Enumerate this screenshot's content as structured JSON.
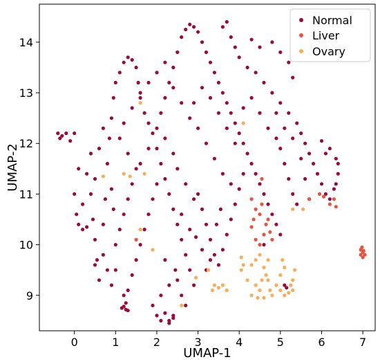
{
  "chart_data": {
    "type": "scatter",
    "xlabel": "UMAP-1",
    "ylabel": "UMAP-2",
    "xlim": [
      -0.85,
      7.3
    ],
    "ylim": [
      8.3,
      14.75
    ],
    "xticks": [
      "0",
      "1",
      "2",
      "3",
      "4",
      "5",
      "6",
      "7"
    ],
    "xtick_values": [
      0,
      1,
      2,
      3,
      4,
      5,
      6,
      7
    ],
    "yticks": [
      "9",
      "10",
      "11",
      "12",
      "13",
      "14"
    ],
    "ytick_values": [
      9,
      10,
      11,
      12,
      13,
      14
    ],
    "grid": false,
    "legend_position": "top-right",
    "series": [
      {
        "name": "Normal",
        "color": "#9b0a3f",
        "points": [
          [
            -0.4,
            12.2
          ],
          [
            -0.35,
            12.1
          ],
          [
            -0.3,
            12.15
          ],
          [
            -0.2,
            12.2
          ],
          [
            -0.1,
            12.05
          ],
          [
            0.0,
            12.2
          ],
          [
            0.1,
            11.5
          ],
          [
            0.0,
            11.0
          ],
          [
            0.05,
            10.6
          ],
          [
            0.1,
            10.4
          ],
          [
            0.2,
            10.3
          ],
          [
            0.3,
            10.35
          ],
          [
            0.2,
            10.8
          ],
          [
            0.3,
            11.4
          ],
          [
            0.4,
            11.0
          ],
          [
            0.45,
            10.5
          ],
          [
            0.5,
            10.1
          ],
          [
            0.55,
            9.7
          ],
          [
            0.6,
            9.3
          ],
          [
            0.5,
            9.6
          ],
          [
            0.7,
            10.4
          ],
          [
            0.75,
            10.9
          ],
          [
            0.8,
            11.6
          ],
          [
            0.85,
            12.1
          ],
          [
            0.9,
            12.5
          ],
          [
            0.95,
            12.9
          ],
          [
            1.0,
            13.2
          ],
          [
            1.1,
            13.4
          ],
          [
            1.2,
            13.6
          ],
          [
            1.3,
            13.7
          ],
          [
            1.4,
            13.65
          ],
          [
            1.5,
            13.5
          ],
          [
            1.55,
            13.2
          ],
          [
            1.6,
            12.9
          ],
          [
            1.7,
            12.6
          ],
          [
            1.8,
            12.4
          ],
          [
            1.9,
            12.2
          ],
          [
            2.0,
            11.9
          ],
          [
            2.1,
            11.6
          ],
          [
            2.2,
            11.3
          ],
          [
            2.3,
            11.0
          ],
          [
            2.4,
            10.7
          ],
          [
            2.5,
            10.4
          ],
          [
            2.6,
            10.1
          ],
          [
            2.7,
            9.8
          ],
          [
            2.8,
            9.5
          ],
          [
            2.9,
            9.2
          ],
          [
            1.2,
            9.0
          ],
          [
            1.15,
            8.75
          ],
          [
            1.25,
            8.85
          ],
          [
            1.3,
            9.1
          ],
          [
            1.4,
            9.4
          ],
          [
            1.5,
            9.7
          ],
          [
            1.6,
            10.0
          ],
          [
            1.7,
            10.3
          ],
          [
            1.8,
            10.6
          ],
          [
            1.9,
            10.9
          ],
          [
            2.0,
            11.2
          ],
          [
            2.1,
            12.6
          ],
          [
            2.2,
            12.9
          ],
          [
            2.3,
            13.2
          ],
          [
            2.4,
            13.5
          ],
          [
            2.5,
            13.8
          ],
          [
            2.6,
            14.1
          ],
          [
            2.7,
            14.25
          ],
          [
            2.8,
            14.35
          ],
          [
            2.9,
            14.3
          ],
          [
            3.0,
            14.2
          ],
          [
            3.1,
            14.0
          ],
          [
            3.2,
            13.8
          ],
          [
            3.3,
            13.6
          ],
          [
            3.4,
            13.4
          ],
          [
            3.5,
            13.2
          ],
          [
            3.6,
            13.0
          ],
          [
            3.7,
            12.8
          ],
          [
            3.8,
            12.6
          ],
          [
            3.9,
            12.4
          ],
          [
            4.0,
            12.2
          ],
          [
            4.1,
            12.0
          ],
          [
            4.2,
            11.8
          ],
          [
            4.3,
            11.6
          ],
          [
            4.4,
            11.4
          ],
          [
            4.5,
            11.2
          ],
          [
            4.6,
            11.0
          ],
          [
            4.7,
            10.8
          ],
          [
            4.8,
            10.6
          ],
          [
            4.9,
            10.4
          ],
          [
            5.0,
            10.2
          ],
          [
            3.6,
            14.3
          ],
          [
            3.7,
            14.4
          ],
          [
            3.8,
            14.1
          ],
          [
            3.9,
            13.9
          ],
          [
            4.0,
            13.7
          ],
          [
            4.2,
            13.5
          ],
          [
            4.4,
            13.4
          ],
          [
            4.6,
            13.2
          ],
          [
            4.8,
            13.0
          ],
          [
            5.0,
            12.8
          ],
          [
            5.2,
            12.6
          ],
          [
            5.4,
            12.4
          ],
          [
            5.5,
            12.2
          ],
          [
            5.6,
            12.0
          ],
          [
            5.7,
            11.8
          ],
          [
            5.8,
            11.6
          ],
          [
            5.9,
            11.4
          ],
          [
            6.0,
            11.2
          ],
          [
            6.1,
            11.0
          ],
          [
            6.2,
            10.9
          ],
          [
            6.3,
            11.1
          ],
          [
            6.4,
            11.4
          ],
          [
            6.35,
            11.7
          ],
          [
            6.2,
            11.9
          ],
          [
            6.0,
            12.05
          ],
          [
            6.1,
            11.8
          ],
          [
            5.3,
            13.3
          ],
          [
            5.2,
            13.6
          ],
          [
            5.0,
            13.8
          ],
          [
            4.8,
            14.0
          ],
          [
            4.5,
            13.9
          ],
          [
            4.3,
            14.05
          ],
          [
            5.3,
            11.0
          ],
          [
            5.4,
            10.8
          ],
          [
            5.2,
            11.3
          ],
          [
            5.1,
            11.6
          ],
          [
            5.0,
            11.9
          ],
          [
            4.9,
            12.1
          ],
          [
            3.0,
            11.0
          ],
          [
            3.1,
            10.7
          ],
          [
            3.2,
            10.4
          ],
          [
            3.3,
            10.1
          ],
          [
            3.4,
            9.8
          ],
          [
            3.5,
            9.6
          ],
          [
            3.6,
            9.9
          ],
          [
            3.7,
            10.2
          ],
          [
            3.8,
            10.5
          ],
          [
            3.9,
            10.8
          ],
          [
            4.0,
            11.1
          ],
          [
            4.1,
            11.4
          ],
          [
            2.3,
            8.5
          ],
          [
            2.2,
            8.65
          ],
          [
            2.4,
            8.6
          ],
          [
            2.0,
            8.6
          ],
          [
            1.9,
            8.8
          ],
          [
            2.1,
            9.0
          ],
          [
            2.3,
            9.2
          ],
          [
            2.5,
            9.3
          ],
          [
            2.6,
            9.0
          ],
          [
            2.7,
            8.8
          ],
          [
            2.45,
            9.5
          ],
          [
            2.2,
            9.7
          ],
          [
            1.0,
            9.5
          ],
          [
            0.9,
            9.2
          ],
          [
            0.8,
            9.5
          ],
          [
            0.7,
            9.8
          ],
          [
            1.0,
            10.0
          ],
          [
            1.1,
            10.3
          ],
          [
            1.2,
            10.6
          ],
          [
            1.3,
            10.9
          ],
          [
            1.4,
            11.2
          ],
          [
            1.5,
            11.5
          ],
          [
            1.3,
            11.8
          ],
          [
            1.1,
            12.1
          ],
          [
            1.2,
            12.4
          ],
          [
            1.4,
            12.7
          ],
          [
            1.6,
            13.0
          ],
          [
            1.8,
            13.2
          ],
          [
            2.0,
            13.4
          ],
          [
            2.2,
            13.6
          ],
          [
            2.4,
            13.1
          ],
          [
            2.6,
            12.8
          ],
          [
            2.8,
            12.5
          ],
          [
            3.0,
            12.3
          ],
          [
            3.2,
            12.0
          ],
          [
            3.4,
            11.7
          ],
          [
            3.6,
            11.4
          ],
          [
            3.8,
            11.2
          ],
          [
            2.9,
            12.8
          ],
          [
            3.1,
            13.1
          ],
          [
            3.3,
            12.9
          ],
          [
            3.5,
            12.6
          ],
          [
            3.7,
            12.3
          ],
          [
            3.9,
            12.0
          ],
          [
            4.1,
            12.7
          ],
          [
            4.3,
            12.9
          ],
          [
            4.5,
            12.6
          ],
          [
            4.7,
            12.3
          ],
          [
            4.9,
            12.6
          ],
          [
            5.1,
            12.3
          ],
          [
            5.3,
            12.1
          ],
          [
            5.5,
            11.7
          ],
          [
            5.6,
            11.3
          ],
          [
            5.7,
            10.9
          ],
          [
            2.5,
            11.5
          ],
          [
            2.7,
            11.2
          ],
          [
            2.9,
            10.9
          ],
          [
            2.8,
            10.3
          ],
          [
            2.6,
            10.6
          ],
          [
            2.4,
            11.8
          ],
          [
            2.2,
            12.1
          ],
          [
            2.0,
            12.3
          ],
          [
            1.8,
            11.9
          ],
          [
            1.6,
            11.6
          ],
          [
            0.6,
            11.9
          ],
          [
            0.7,
            12.3
          ],
          [
            0.5,
            11.3
          ],
          [
            0.4,
            11.8
          ],
          [
            0.9,
            11.1
          ],
          [
            0.95,
            10.7
          ],
          [
            6.4,
            11.6
          ],
          [
            6.35,
            11.2
          ],
          [
            1.25,
            8.72
          ],
          [
            1.2,
            8.78
          ],
          [
            1.3,
            8.7
          ],
          [
            2.3,
            8.45
          ],
          [
            2.1,
            8.5
          ],
          [
            2.4,
            8.55
          ],
          [
            3.2,
            9.5
          ],
          [
            3.3,
            9.7
          ],
          [
            3.1,
            9.9
          ],
          [
            2.95,
            10.15
          ],
          [
            3.45,
            10.4
          ],
          [
            3.55,
            10.7
          ],
          [
            5.1,
            9.2
          ],
          [
            5.15,
            9.15
          ],
          [
            4.6,
            10.0
          ]
        ]
      },
      {
        "name": "Liver",
        "color": "#e8533f",
        "points": [
          [
            6.95,
            9.9
          ],
          [
            7.0,
            9.85
          ],
          [
            7.05,
            9.8
          ],
          [
            6.98,
            9.95
          ],
          [
            7.02,
            9.88
          ],
          [
            6.95,
            9.8
          ],
          [
            7.0,
            9.75
          ],
          [
            4.35,
            10.5
          ],
          [
            4.5,
            10.6
          ],
          [
            4.65,
            10.4
          ],
          [
            4.6,
            10.2
          ],
          [
            4.75,
            10.25
          ],
          [
            4.4,
            10.1
          ],
          [
            4.5,
            10.0
          ],
          [
            4.3,
            10.35
          ],
          [
            4.7,
            10.5
          ],
          [
            4.8,
            10.1
          ],
          [
            4.55,
            10.8
          ],
          [
            4.4,
            10.7
          ],
          [
            4.55,
            11.3
          ],
          [
            6.3,
            10.9
          ],
          [
            6.05,
            10.95
          ],
          [
            5.95,
            11.0
          ],
          [
            5.7,
            10.9
          ],
          [
            6.2,
            10.8
          ],
          [
            6.35,
            10.75
          ],
          [
            1.5,
            10.1
          ],
          [
            4.3,
            10.9
          ]
        ]
      },
      {
        "name": "Ovary",
        "color": "#f7ae5b",
        "points": [
          [
            3.4,
            9.2
          ],
          [
            3.35,
            9.1
          ],
          [
            3.5,
            9.15
          ],
          [
            3.6,
            9.2
          ],
          [
            3.7,
            9.1
          ],
          [
            4.1,
            9.6
          ],
          [
            4.05,
            9.5
          ],
          [
            4.2,
            9.3
          ],
          [
            4.3,
            9.0
          ],
          [
            4.4,
            9.2
          ],
          [
            4.45,
            8.95
          ],
          [
            4.6,
            8.95
          ],
          [
            4.5,
            9.1
          ],
          [
            4.55,
            9.3
          ],
          [
            4.7,
            9.3
          ],
          [
            4.75,
            9.1
          ],
          [
            4.8,
            9.0
          ],
          [
            4.9,
            9.2
          ],
          [
            5.0,
            9.1
          ],
          [
            5.1,
            9.0
          ],
          [
            5.2,
            9.05
          ],
          [
            5.3,
            9.1
          ],
          [
            4.6,
            9.55
          ],
          [
            4.7,
            9.7
          ],
          [
            4.5,
            9.8
          ],
          [
            4.65,
            9.4
          ],
          [
            4.3,
            9.6
          ],
          [
            4.4,
            9.7
          ],
          [
            5.05,
            9.7
          ],
          [
            5.35,
            9.5
          ],
          [
            5.3,
            9.3
          ],
          [
            5.0,
            9.4
          ],
          [
            5.1,
            9.55
          ],
          [
            5.25,
            9.2
          ],
          [
            1.35,
            11.35
          ],
          [
            1.6,
            12.8
          ],
          [
            1.7,
            11.4
          ],
          [
            1.6,
            10.3
          ],
          [
            1.9,
            9.9
          ],
          [
            2.95,
            9.35
          ],
          [
            3.25,
            9.5
          ],
          [
            4.05,
            9.75
          ],
          [
            4.1,
            12.4
          ],
          [
            5.3,
            10.7
          ],
          [
            5.55,
            10.7
          ],
          [
            2.6,
            8.8
          ],
          [
            1.2,
            11.4
          ],
          [
            0.7,
            11.35
          ]
        ]
      }
    ]
  }
}
